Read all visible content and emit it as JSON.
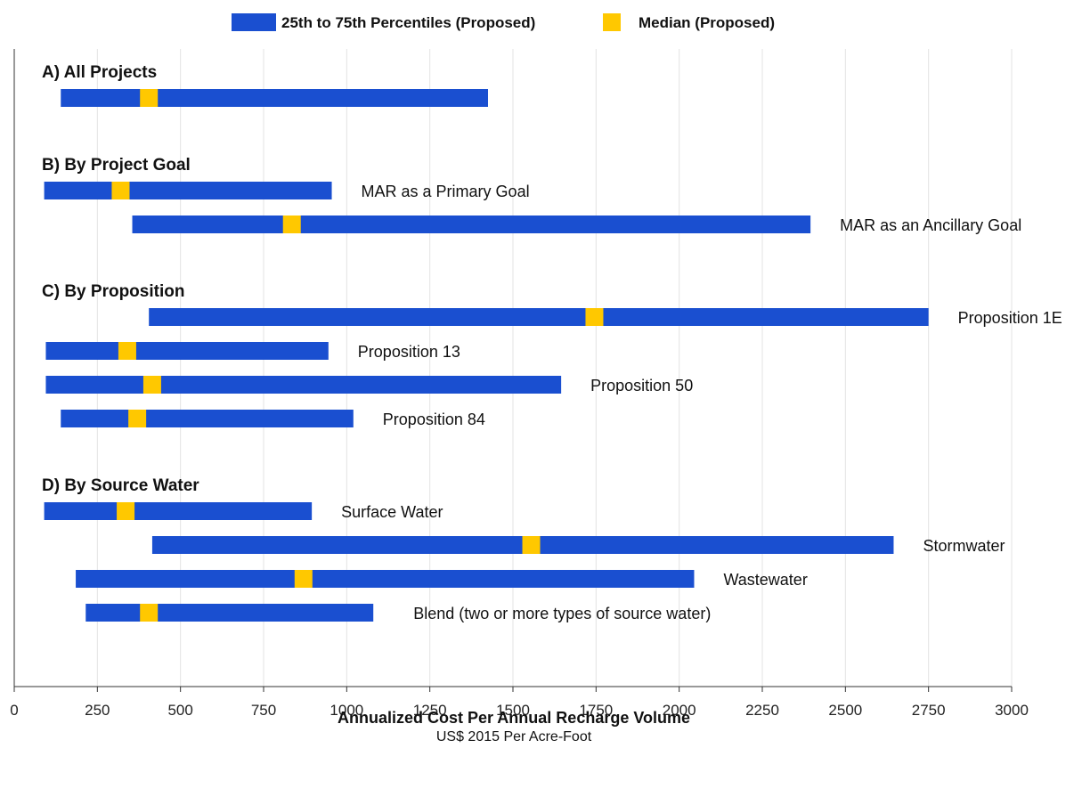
{
  "legend": {
    "iqr_label": "25th to 75th Percentiles (Proposed)",
    "median_label": "Median (Proposed)"
  },
  "colors": {
    "iqr": "#1a4fd0",
    "median": "#ffc800",
    "grid": "#e3e3e3",
    "axis": "#333333"
  },
  "chart_data": {
    "type": "bar",
    "orientation": "horizontal",
    "title": "",
    "xlabel": "Annualized Cost Per Annual Recharge Volume",
    "xlabel_sub": "US$ 2015 Per Acre-Foot",
    "xlim": [
      0,
      3000
    ],
    "xticks": [
      "0",
      "250",
      "500",
      "750",
      "1000",
      "1250",
      "1500",
      "1750",
      "2000",
      "2250",
      "2500",
      "2750",
      "3000"
    ],
    "grid": true,
    "legend_position": "top",
    "groups": [
      {
        "label": "A) All Projects",
        "bars": [
          {
            "label": "",
            "p25": 140,
            "median": 405,
            "p75": 1425
          }
        ]
      },
      {
        "label": "B) By Project Goal",
        "bars": [
          {
            "label": "MAR as a Primary Goal",
            "p25": 90,
            "median": 320,
            "p75": 955
          },
          {
            "label": "MAR as an Ancillary Goal",
            "p25": 355,
            "median": 835,
            "p75": 2395
          }
        ]
      },
      {
        "label": "C) By Proposition",
        "bars": [
          {
            "label": "Proposition 1E",
            "p25": 405,
            "median": 1745,
            "p75": 2750
          },
          {
            "label": "Proposition 13",
            "p25": 95,
            "median": 340,
            "p75": 945
          },
          {
            "label": "Proposition 50",
            "p25": 95,
            "median": 415,
            "p75": 1645
          },
          {
            "label": "Proposition 84",
            "p25": 140,
            "median": 370,
            "p75": 1020
          }
        ]
      },
      {
        "label": "D) By Source Water",
        "bars": [
          {
            "label": "Surface Water",
            "p25": 90,
            "median": 335,
            "p75": 895
          },
          {
            "label": "Stormwater",
            "p25": 415,
            "median": 1555,
            "p75": 2645
          },
          {
            "label": "Wastewater",
            "p25": 185,
            "median": 870,
            "p75": 2045
          },
          {
            "label": "Blend (two or more types of source water)",
            "p25": 215,
            "median": 405,
            "p75": 1080
          }
        ]
      }
    ]
  }
}
